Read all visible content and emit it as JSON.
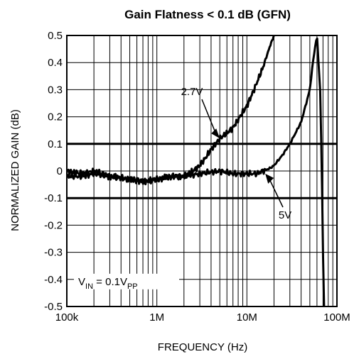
{
  "chart_data": {
    "type": "line",
    "title": "Gain Flatness < 0.1 dB (GFN)",
    "xlabel": "FREQUENCY (Hz)",
    "ylabel": "NORMALIZED GAIN (dB)",
    "x_scale": "log",
    "xlim": [
      100000,
      100000000
    ],
    "ylim": [
      -0.5,
      0.5
    ],
    "x_ticks": [
      {
        "value": 100000,
        "label": "100k"
      },
      {
        "value": 1000000,
        "label": "1M"
      },
      {
        "value": 10000000,
        "label": "10M"
      },
      {
        "value": 100000000,
        "label": "100M"
      }
    ],
    "y_ticks": [
      {
        "value": 0.5,
        "label": "0.5"
      },
      {
        "value": 0.4,
        "label": "0.4"
      },
      {
        "value": 0.3,
        "label": "0.3"
      },
      {
        "value": 0.2,
        "label": "0.2"
      },
      {
        "value": 0.1,
        "label": "0.1"
      },
      {
        "value": 0,
        "label": "0"
      },
      {
        "value": -0.1,
        "label": "-0.1"
      },
      {
        "value": -0.2,
        "label": "-0.2"
      },
      {
        "value": -0.3,
        "label": "-0.3"
      },
      {
        "value": -0.4,
        "label": "-0.4"
      },
      {
        "value": -0.5,
        "label": "-0.5"
      }
    ],
    "grid": true,
    "reference_lines": [
      0.1,
      -0.1
    ],
    "series": [
      {
        "name": "2.7V",
        "x": [
          100000,
          150000,
          200000,
          300000,
          500000,
          700000,
          1000000,
          1500000,
          2000000,
          2500000,
          3000000,
          3500000,
          4000000,
          5000000,
          6000000,
          7000000,
          8000000,
          10000000,
          12000000,
          15000000,
          18000000,
          20000000,
          22000000
        ],
        "y": [
          0.0,
          -0.01,
          0.0,
          -0.02,
          -0.03,
          -0.04,
          -0.03,
          -0.02,
          -0.02,
          0.0,
          0.02,
          0.05,
          0.08,
          0.12,
          0.14,
          0.16,
          0.19,
          0.24,
          0.3,
          0.38,
          0.46,
          0.5,
          0.52
        ]
      },
      {
        "name": "5V",
        "x": [
          100000,
          150000,
          200000,
          300000,
          500000,
          700000,
          1000000,
          1500000,
          2000000,
          3000000,
          5000000,
          7000000,
          10000000,
          13000000,
          15000000,
          18000000,
          20000000,
          25000000,
          30000000,
          40000000,
          50000000,
          55000000,
          60000000,
          65000000,
          68000000,
          70000000,
          72000000
        ],
        "y": [
          -0.02,
          -0.02,
          -0.01,
          -0.02,
          -0.03,
          -0.04,
          -0.03,
          -0.02,
          -0.02,
          -0.01,
          0.0,
          -0.01,
          -0.01,
          -0.01,
          0.0,
          0.01,
          0.02,
          0.06,
          0.1,
          0.18,
          0.3,
          0.42,
          0.5,
          0.3,
          0.0,
          -0.3,
          -0.5
        ]
      }
    ],
    "annotations": [
      {
        "label": "2.7V",
        "points_to_x": 5000000,
        "points_to_y": 0.12
      },
      {
        "label": "5V",
        "points_to_x": 16000000,
        "points_to_y": -0.01
      },
      {
        "label_parts": {
          "v": "V",
          "in_sub": "IN",
          "mid": " = 0.1V",
          "pp_sub": "PP"
        }
      }
    ]
  }
}
